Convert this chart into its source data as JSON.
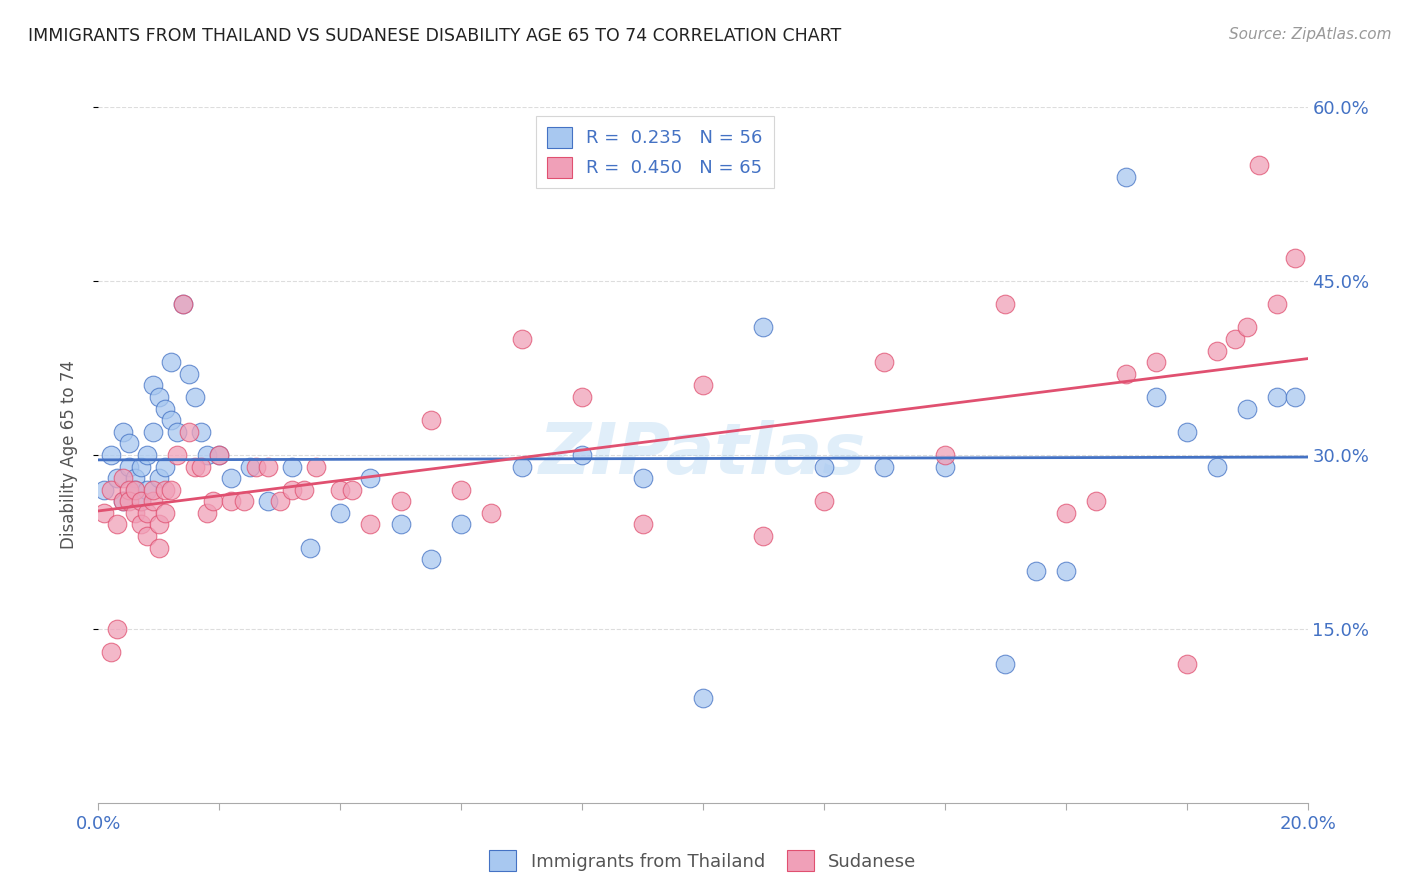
{
  "title": "IMMIGRANTS FROM THAILAND VS SUDANESE DISABILITY AGE 65 TO 74 CORRELATION CHART",
  "source": "Source: ZipAtlas.com",
  "ylabel": "Disability Age 65 to 74",
  "legend_label_1": "Immigrants from Thailand",
  "legend_label_2": "Sudanese",
  "R1": 0.235,
  "N1": 56,
  "R2": 0.45,
  "N2": 65,
  "xlim": [
    0.0,
    0.2
  ],
  "ylim": [
    0.0,
    0.6
  ],
  "xticks": [
    0.0,
    0.02,
    0.04,
    0.06,
    0.08,
    0.1,
    0.12,
    0.14,
    0.16,
    0.18,
    0.2
  ],
  "yticks_right": [
    0.15,
    0.3,
    0.45,
    0.6
  ],
  "color_blue": "#A8C8F0",
  "color_pink": "#F0A0B8",
  "color_line_blue": "#4472C4",
  "color_line_pink": "#E05070",
  "color_right_axis": "#4472C4",
  "color_bottom_axis": "#4472C4",
  "background_color": "#FFFFFF",
  "title_color": "#222222",
  "source_color": "#999999",
  "grid_color": "#DDDDDD",
  "blue_x": [
    0.001,
    0.002,
    0.003,
    0.004,
    0.004,
    0.005,
    0.005,
    0.006,
    0.006,
    0.007,
    0.007,
    0.008,
    0.008,
    0.009,
    0.009,
    0.01,
    0.01,
    0.011,
    0.011,
    0.012,
    0.012,
    0.013,
    0.014,
    0.015,
    0.016,
    0.017,
    0.018,
    0.02,
    0.022,
    0.025,
    0.028,
    0.032,
    0.035,
    0.04,
    0.045,
    0.05,
    0.055,
    0.06,
    0.07,
    0.08,
    0.09,
    0.1,
    0.11,
    0.12,
    0.13,
    0.14,
    0.15,
    0.155,
    0.16,
    0.17,
    0.175,
    0.18,
    0.185,
    0.19,
    0.195,
    0.198
  ],
  "blue_y": [
    0.27,
    0.3,
    0.28,
    0.26,
    0.32,
    0.29,
    0.31,
    0.28,
    0.27,
    0.29,
    0.26,
    0.3,
    0.27,
    0.32,
    0.36,
    0.28,
    0.35,
    0.34,
    0.29,
    0.38,
    0.33,
    0.32,
    0.43,
    0.37,
    0.35,
    0.32,
    0.3,
    0.3,
    0.28,
    0.29,
    0.26,
    0.29,
    0.22,
    0.25,
    0.28,
    0.24,
    0.21,
    0.24,
    0.29,
    0.3,
    0.28,
    0.09,
    0.41,
    0.29,
    0.29,
    0.29,
    0.12,
    0.2,
    0.2,
    0.54,
    0.35,
    0.32,
    0.29,
    0.34,
    0.35,
    0.35
  ],
  "pink_x": [
    0.001,
    0.002,
    0.002,
    0.003,
    0.003,
    0.004,
    0.004,
    0.005,
    0.005,
    0.006,
    0.006,
    0.007,
    0.007,
    0.008,
    0.008,
    0.009,
    0.009,
    0.01,
    0.01,
    0.011,
    0.011,
    0.012,
    0.013,
    0.014,
    0.015,
    0.016,
    0.017,
    0.018,
    0.019,
    0.02,
    0.022,
    0.024,
    0.026,
    0.028,
    0.03,
    0.032,
    0.034,
    0.036,
    0.04,
    0.042,
    0.045,
    0.05,
    0.055,
    0.06,
    0.065,
    0.07,
    0.08,
    0.09,
    0.1,
    0.11,
    0.12,
    0.13,
    0.14,
    0.15,
    0.16,
    0.165,
    0.17,
    0.175,
    0.18,
    0.185,
    0.188,
    0.19,
    0.192,
    0.195,
    0.198
  ],
  "pink_y": [
    0.25,
    0.27,
    0.13,
    0.15,
    0.24,
    0.26,
    0.28,
    0.27,
    0.26,
    0.27,
    0.25,
    0.26,
    0.24,
    0.23,
    0.25,
    0.26,
    0.27,
    0.24,
    0.22,
    0.25,
    0.27,
    0.27,
    0.3,
    0.43,
    0.32,
    0.29,
    0.29,
    0.25,
    0.26,
    0.3,
    0.26,
    0.26,
    0.29,
    0.29,
    0.26,
    0.27,
    0.27,
    0.29,
    0.27,
    0.27,
    0.24,
    0.26,
    0.33,
    0.27,
    0.25,
    0.4,
    0.35,
    0.24,
    0.36,
    0.23,
    0.26,
    0.38,
    0.3,
    0.43,
    0.25,
    0.26,
    0.37,
    0.38,
    0.12,
    0.39,
    0.4,
    0.41,
    0.55,
    0.43,
    0.47
  ]
}
